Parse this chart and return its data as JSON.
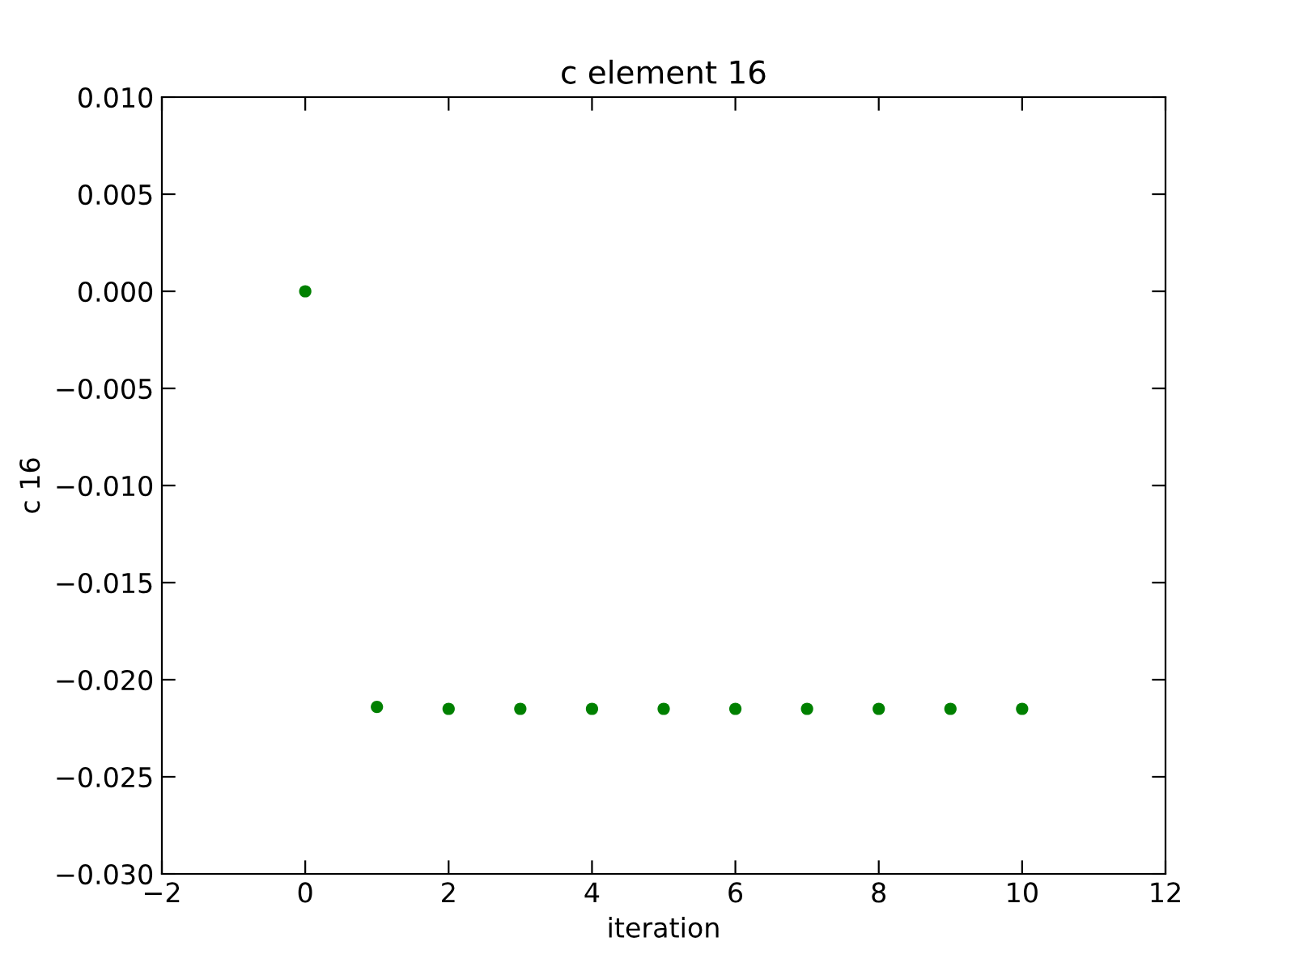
{
  "chart_data": {
    "type": "scatter",
    "title": "c element 16",
    "xlabel": "iteration",
    "ylabel": "c 16",
    "x": [
      0,
      1,
      2,
      3,
      4,
      5,
      6,
      7,
      8,
      9,
      10
    ],
    "series": [
      {
        "color": "#008000",
        "values": [
          0.0,
          -0.0214,
          -0.0215,
          -0.0215,
          -0.0215,
          -0.0215,
          -0.0215,
          -0.0215,
          -0.0215,
          -0.0215,
          -0.0215
        ]
      }
    ],
    "xlim": [
      -2,
      12
    ],
    "xticks": [
      {
        "value": -2,
        "label": "−2"
      },
      0,
      2,
      4,
      6,
      8,
      10,
      12
    ],
    "ylim": [
      -0.03,
      0.01
    ],
    "yticks": [
      {
        "value": -0.03,
        "label": "−0.030"
      },
      {
        "value": -0.025,
        "label": "−0.025"
      },
      {
        "value": -0.02,
        "label": "−0.020"
      },
      {
        "value": -0.015,
        "label": "−0.015"
      },
      {
        "value": -0.01,
        "label": "−0.010"
      },
      {
        "value": -0.005,
        "label": "−0.005"
      },
      {
        "value": 0.0,
        "label": "0.000"
      },
      {
        "value": 0.005,
        "label": "0.005"
      },
      {
        "value": 0.01,
        "label": "0.010"
      }
    ],
    "marker": "circle",
    "grid": false,
    "legend": false
  }
}
